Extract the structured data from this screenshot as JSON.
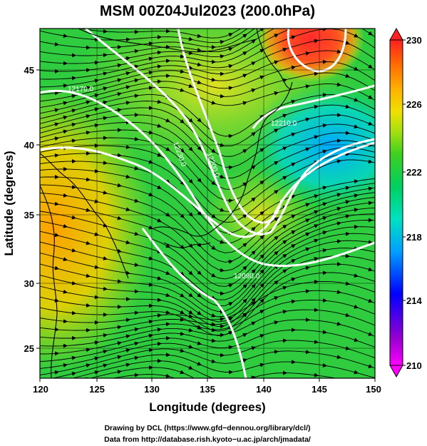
{
  "title": "MSM 00Z04Jul2023 (200.0hPa)",
  "x_axis": {
    "label": "Longitude (degrees)",
    "ticks": [
      "120",
      "125",
      "130",
      "135",
      "140",
      "145",
      "150"
    ]
  },
  "y_axis": {
    "label": "Latitude  (degrees)",
    "ticks": [
      "25",
      "30",
      "35",
      "40",
      "45"
    ]
  },
  "colorbar": {
    "ticks": [
      "230",
      "226",
      "222",
      "218",
      "214",
      "210"
    ],
    "colors": [
      "#ff00ff",
      "#9a00d0",
      "#0000ff",
      "#00a0ff",
      "#00e0c0",
      "#00d060",
      "#40d020",
      "#a8e010",
      "#f0e000",
      "#ffb000",
      "#ff7000",
      "#ff2020"
    ]
  },
  "contour_labels": [
    "12210.0",
    "12200.0",
    "12230.0",
    "12090.0",
    "12170.0"
  ],
  "credits": [
    "Drawing by DCL (https://www.gfd−dennou.org/library/dcl/)",
    "Data from http://database.rish.kyoto−u.ac.jp/arch/jmadata/"
  ]
}
